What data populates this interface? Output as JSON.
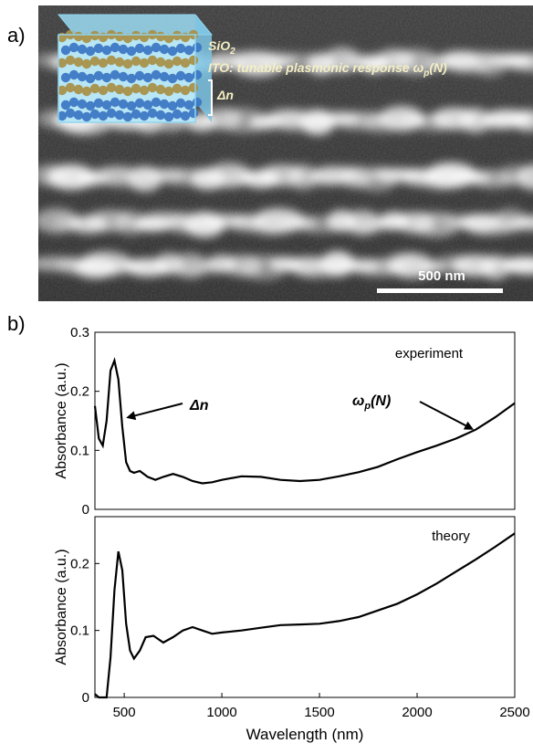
{
  "panel_a": {
    "label": "a)",
    "layer_labels": {
      "sio2_main": "SiO",
      "sio2_sub": "2",
      "ito_main": "ITO: tunable plasmonic response ω",
      "ito_sub": "p",
      "ito_tail": "(N)",
      "delta_n": "Δn"
    },
    "scale_bar": {
      "label": "500 nm",
      "length_nm": 500
    },
    "colors": {
      "gold_np": "#a8914a",
      "blue_np": "#3d78c4",
      "cube_edge": "#8fd4ee"
    }
  },
  "panel_b": {
    "label": "b)"
  },
  "chart_data": [
    {
      "type": "line",
      "title": "",
      "annotation_label": "experiment",
      "ylabel": "Absorbance (a.u.)",
      "xlabel": "",
      "xlim": [
        350,
        2500
      ],
      "ylim": [
        0,
        0.3
      ],
      "yticks": [
        "0",
        "0.1",
        "0.2",
        "0.3"
      ],
      "annotations": [
        {
          "text": "Δn",
          "points_to_x": 510,
          "points_to_y": 0.155
        },
        {
          "text_main": "ω",
          "text_sub": "p",
          "text_tail": "(N)",
          "points_to_x": 2290,
          "points_to_y": 0.135
        }
      ],
      "x": [
        350,
        370,
        390,
        410,
        430,
        450,
        470,
        490,
        510,
        530,
        550,
        580,
        620,
        660,
        700,
        750,
        800,
        850,
        900,
        950,
        1000,
        1100,
        1200,
        1300,
        1400,
        1500,
        1600,
        1700,
        1800,
        1900,
        2000,
        2100,
        2200,
        2300,
        2400,
        2500
      ],
      "y": [
        0.175,
        0.12,
        0.108,
        0.15,
        0.235,
        0.252,
        0.22,
        0.14,
        0.08,
        0.065,
        0.062,
        0.065,
        0.055,
        0.05,
        0.055,
        0.06,
        0.055,
        0.048,
        0.044,
        0.046,
        0.05,
        0.056,
        0.055,
        0.05,
        0.048,
        0.05,
        0.056,
        0.063,
        0.072,
        0.085,
        0.097,
        0.108,
        0.12,
        0.135,
        0.156,
        0.18
      ]
    },
    {
      "type": "line",
      "title": "",
      "annotation_label": "theory",
      "ylabel": "Absorbance (a.u.)",
      "xlabel": "Wavelength (nm)",
      "xlim": [
        350,
        2500
      ],
      "ylim": [
        0,
        0.27
      ],
      "yticks": [
        "0",
        "0.1",
        "0.2"
      ],
      "xticks": [
        "500",
        "1000",
        "1500",
        "2000",
        "2500"
      ],
      "x": [
        350,
        370,
        390,
        410,
        430,
        450,
        470,
        490,
        510,
        530,
        550,
        580,
        610,
        650,
        700,
        750,
        800,
        850,
        900,
        950,
        1000,
        1100,
        1200,
        1300,
        1400,
        1500,
        1600,
        1700,
        1800,
        1900,
        2000,
        2100,
        2200,
        2300,
        2400,
        2500
      ],
      "y": [
        0.005,
        0.0,
        0.0,
        0.0,
        0.06,
        0.16,
        0.218,
        0.19,
        0.11,
        0.07,
        0.058,
        0.07,
        0.09,
        0.092,
        0.082,
        0.09,
        0.1,
        0.105,
        0.1,
        0.095,
        0.097,
        0.1,
        0.104,
        0.108,
        0.109,
        0.11,
        0.114,
        0.12,
        0.13,
        0.14,
        0.154,
        0.17,
        0.188,
        0.206,
        0.225,
        0.245
      ]
    }
  ]
}
